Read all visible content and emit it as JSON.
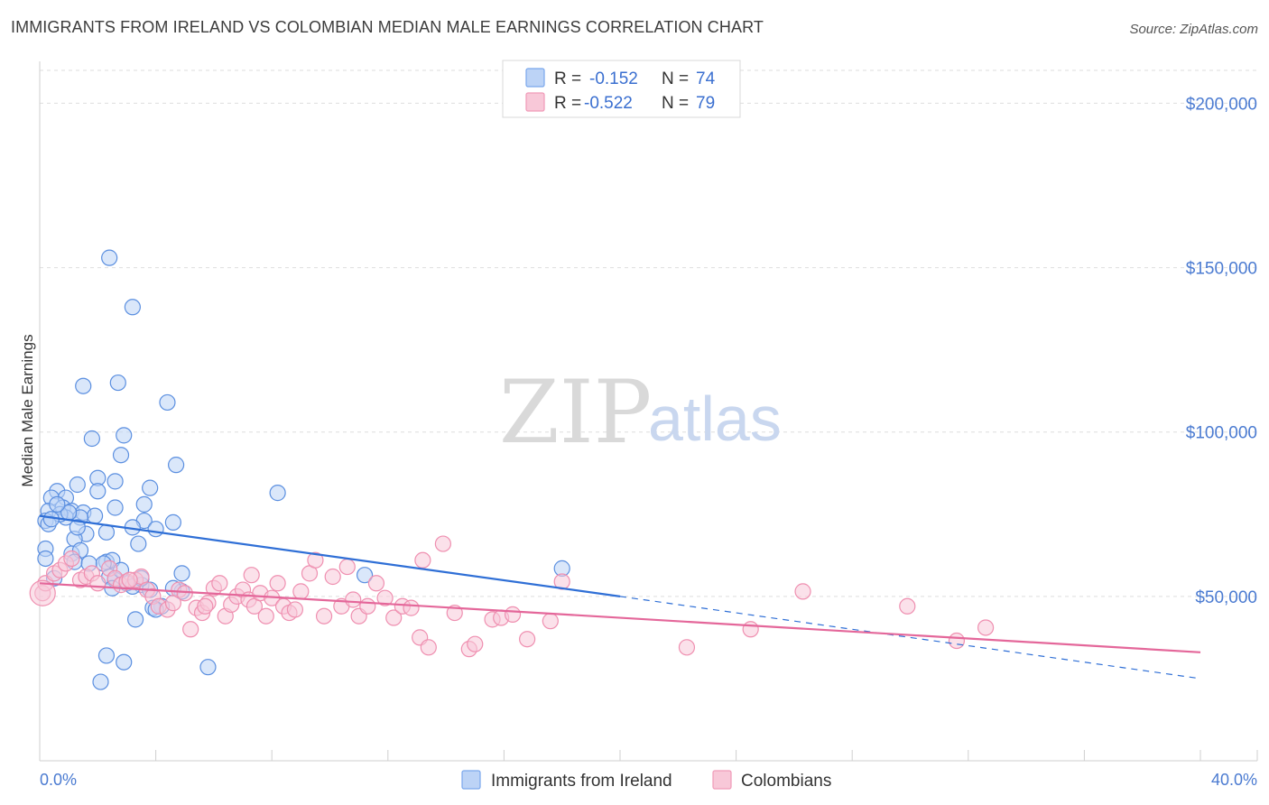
{
  "title": "IMMIGRANTS FROM IRELAND VS COLOMBIAN MEDIAN MALE EARNINGS CORRELATION CHART",
  "source": "Source: ZipAtlas.com",
  "watermark": {
    "zip": "ZIP",
    "atlas": "atlas"
  },
  "legend": {
    "rows": [
      {
        "r_label": "R =",
        "r_value": "-0.152",
        "n_label": "N =",
        "n_value": "74",
        "color": "#7aa7ec",
        "fill": "#bcd3f6"
      },
      {
        "r_label": "R =",
        "r_value": "-0.522",
        "n_label": "N =",
        "n_value": "79",
        "color": "#f09ab8",
        "fill": "#f8c8d8"
      }
    ]
  },
  "bottom_legend": [
    {
      "label": "Immigrants from Ireland",
      "color": "#7aa7ec",
      "fill": "#bcd3f6"
    },
    {
      "label": "Colombians",
      "color": "#f09ab8",
      "fill": "#f8c8d8"
    }
  ],
  "chart_data": {
    "type": "scatter",
    "title": "IMMIGRANTS FROM IRELAND VS COLOMBIAN MEDIAN MALE EARNINGS CORRELATION CHART",
    "xlabel": "",
    "ylabel": "Median Male Earnings",
    "xlim": [
      0,
      40
    ],
    "ylim": [
      0,
      210000
    ],
    "x_tick_labels": {
      "left": "0.0%",
      "right": "40.0%"
    },
    "y_ticks": [
      {
        "value": 50000,
        "label": "$50,000"
      },
      {
        "value": 100000,
        "label": "$100,000"
      },
      {
        "value": 150000,
        "label": "$150,000"
      },
      {
        "value": 200000,
        "label": "$200,000"
      }
    ],
    "series": [
      {
        "name": "Immigrants from Ireland",
        "color": "#5b8fe0",
        "fill": "#bcd3f6",
        "trend": {
          "x0": 0,
          "y0": 74500,
          "x1": 20,
          "y1": 50000,
          "dash_x1": 40,
          "dash_y1": 25000,
          "color": "#2f6fd6"
        },
        "points": [
          [
            2.4,
            153000
          ],
          [
            3.2,
            138000
          ],
          [
            1.5,
            114000
          ],
          [
            2.7,
            115000
          ],
          [
            4.4,
            109000
          ],
          [
            1.8,
            98000
          ],
          [
            2.9,
            99000
          ],
          [
            2.8,
            93000
          ],
          [
            4.7,
            90000
          ],
          [
            2.0,
            86000
          ],
          [
            2.6,
            85000
          ],
          [
            1.3,
            84000
          ],
          [
            0.6,
            82000
          ],
          [
            3.8,
            83000
          ],
          [
            2.0,
            82000
          ],
          [
            8.2,
            81500
          ],
          [
            0.4,
            80000
          ],
          [
            0.9,
            80000
          ],
          [
            0.8,
            77000
          ],
          [
            1.1,
            76000
          ],
          [
            2.6,
            77000
          ],
          [
            3.6,
            78000
          ],
          [
            0.3,
            76000
          ],
          [
            0.9,
            74000
          ],
          [
            1.5,
            75500
          ],
          [
            0.7,
            75000
          ],
          [
            1.9,
            74500
          ],
          [
            0.2,
            73000
          ],
          [
            0.3,
            72000
          ],
          [
            1.4,
            74000
          ],
          [
            3.6,
            73000
          ],
          [
            4.6,
            72500
          ],
          [
            3.2,
            71000
          ],
          [
            4.0,
            70500
          ],
          [
            1.6,
            69000
          ],
          [
            2.3,
            69500
          ],
          [
            1.2,
            67500
          ],
          [
            3.4,
            66000
          ],
          [
            0.2,
            64500
          ],
          [
            1.1,
            63000
          ],
          [
            1.4,
            64000
          ],
          [
            0.2,
            61500
          ],
          [
            1.2,
            60500
          ],
          [
            2.3,
            60500
          ],
          [
            2.5,
            61000
          ],
          [
            2.2,
            60000
          ],
          [
            4.9,
            57000
          ],
          [
            18.0,
            58500
          ],
          [
            11.2,
            56500
          ],
          [
            2.4,
            56000
          ],
          [
            0.5,
            55500
          ],
          [
            2.6,
            55000
          ],
          [
            3.0,
            54000
          ],
          [
            3.5,
            53500
          ],
          [
            3.2,
            53000
          ],
          [
            2.5,
            52500
          ],
          [
            3.8,
            52000
          ],
          [
            4.9,
            51500
          ],
          [
            4.2,
            47000
          ],
          [
            3.9,
            46500
          ],
          [
            4.0,
            46000
          ],
          [
            3.3,
            43000
          ],
          [
            2.3,
            32000
          ],
          [
            2.9,
            30000
          ],
          [
            5.8,
            28500
          ],
          [
            2.1,
            24000
          ],
          [
            0.4,
            73500
          ],
          [
            1.0,
            75500
          ],
          [
            0.6,
            78000
          ],
          [
            1.3,
            71000
          ],
          [
            2.8,
            58000
          ],
          [
            3.5,
            55500
          ],
          [
            4.6,
            52500
          ],
          [
            1.7,
            60000
          ]
        ]
      },
      {
        "name": "Colombians",
        "color": "#ef8fb0",
        "fill": "#f8c8d8",
        "trend": {
          "x0": 0,
          "y0": 54000,
          "x1": 40,
          "y1": 33000,
          "color": "#e4679a"
        },
        "points": [
          [
            0.1,
            51000
          ],
          [
            0.2,
            54000
          ],
          [
            0.5,
            57000
          ],
          [
            0.7,
            58000
          ],
          [
            0.9,
            60000
          ],
          [
            1.1,
            61500
          ],
          [
            1.4,
            55000
          ],
          [
            1.6,
            56000
          ],
          [
            1.8,
            57000
          ],
          [
            2.0,
            54000
          ],
          [
            2.4,
            58500
          ],
          [
            2.6,
            55500
          ],
          [
            2.8,
            53500
          ],
          [
            3.0,
            54500
          ],
          [
            3.3,
            55000
          ],
          [
            3.5,
            56000
          ],
          [
            3.7,
            52000
          ],
          [
            3.9,
            50000
          ],
          [
            4.1,
            47000
          ],
          [
            4.4,
            46000
          ],
          [
            4.6,
            48000
          ],
          [
            4.8,
            52000
          ],
          [
            5.0,
            51000
          ],
          [
            5.2,
            40000
          ],
          [
            5.4,
            46500
          ],
          [
            5.6,
            45000
          ],
          [
            5.8,
            48000
          ],
          [
            6.0,
            52500
          ],
          [
            6.2,
            54000
          ],
          [
            6.4,
            44000
          ],
          [
            6.6,
            47500
          ],
          [
            6.8,
            50000
          ],
          [
            7.0,
            52000
          ],
          [
            7.2,
            49000
          ],
          [
            7.4,
            47000
          ],
          [
            7.6,
            51000
          ],
          [
            7.8,
            44000
          ],
          [
            8.0,
            49500
          ],
          [
            8.2,
            54000
          ],
          [
            8.4,
            47000
          ],
          [
            8.6,
            45000
          ],
          [
            8.8,
            46000
          ],
          [
            9.0,
            51500
          ],
          [
            9.3,
            57000
          ],
          [
            9.5,
            61000
          ],
          [
            9.8,
            44000
          ],
          [
            10.1,
            56000
          ],
          [
            10.4,
            47000
          ],
          [
            10.6,
            59000
          ],
          [
            10.8,
            49000
          ],
          [
            11.0,
            44000
          ],
          [
            11.3,
            47000
          ],
          [
            11.6,
            54000
          ],
          [
            11.9,
            49500
          ],
          [
            12.2,
            43500
          ],
          [
            12.5,
            47000
          ],
          [
            12.8,
            46500
          ],
          [
            13.1,
            37500
          ],
          [
            13.4,
            34500
          ],
          [
            13.2,
            61000
          ],
          [
            13.9,
            66000
          ],
          [
            14.3,
            45000
          ],
          [
            14.8,
            34000
          ],
          [
            15.0,
            35500
          ],
          [
            15.6,
            43000
          ],
          [
            15.9,
            43500
          ],
          [
            16.3,
            44500
          ],
          [
            16.8,
            37000
          ],
          [
            17.6,
            42500
          ],
          [
            18.0,
            54500
          ],
          [
            22.3,
            34500
          ],
          [
            24.5,
            40000
          ],
          [
            26.3,
            51500
          ],
          [
            29.9,
            47000
          ],
          [
            31.6,
            36500
          ],
          [
            32.6,
            40500
          ],
          [
            3.1,
            55000
          ],
          [
            5.7,
            47000
          ],
          [
            7.3,
            56500
          ]
        ]
      }
    ]
  }
}
